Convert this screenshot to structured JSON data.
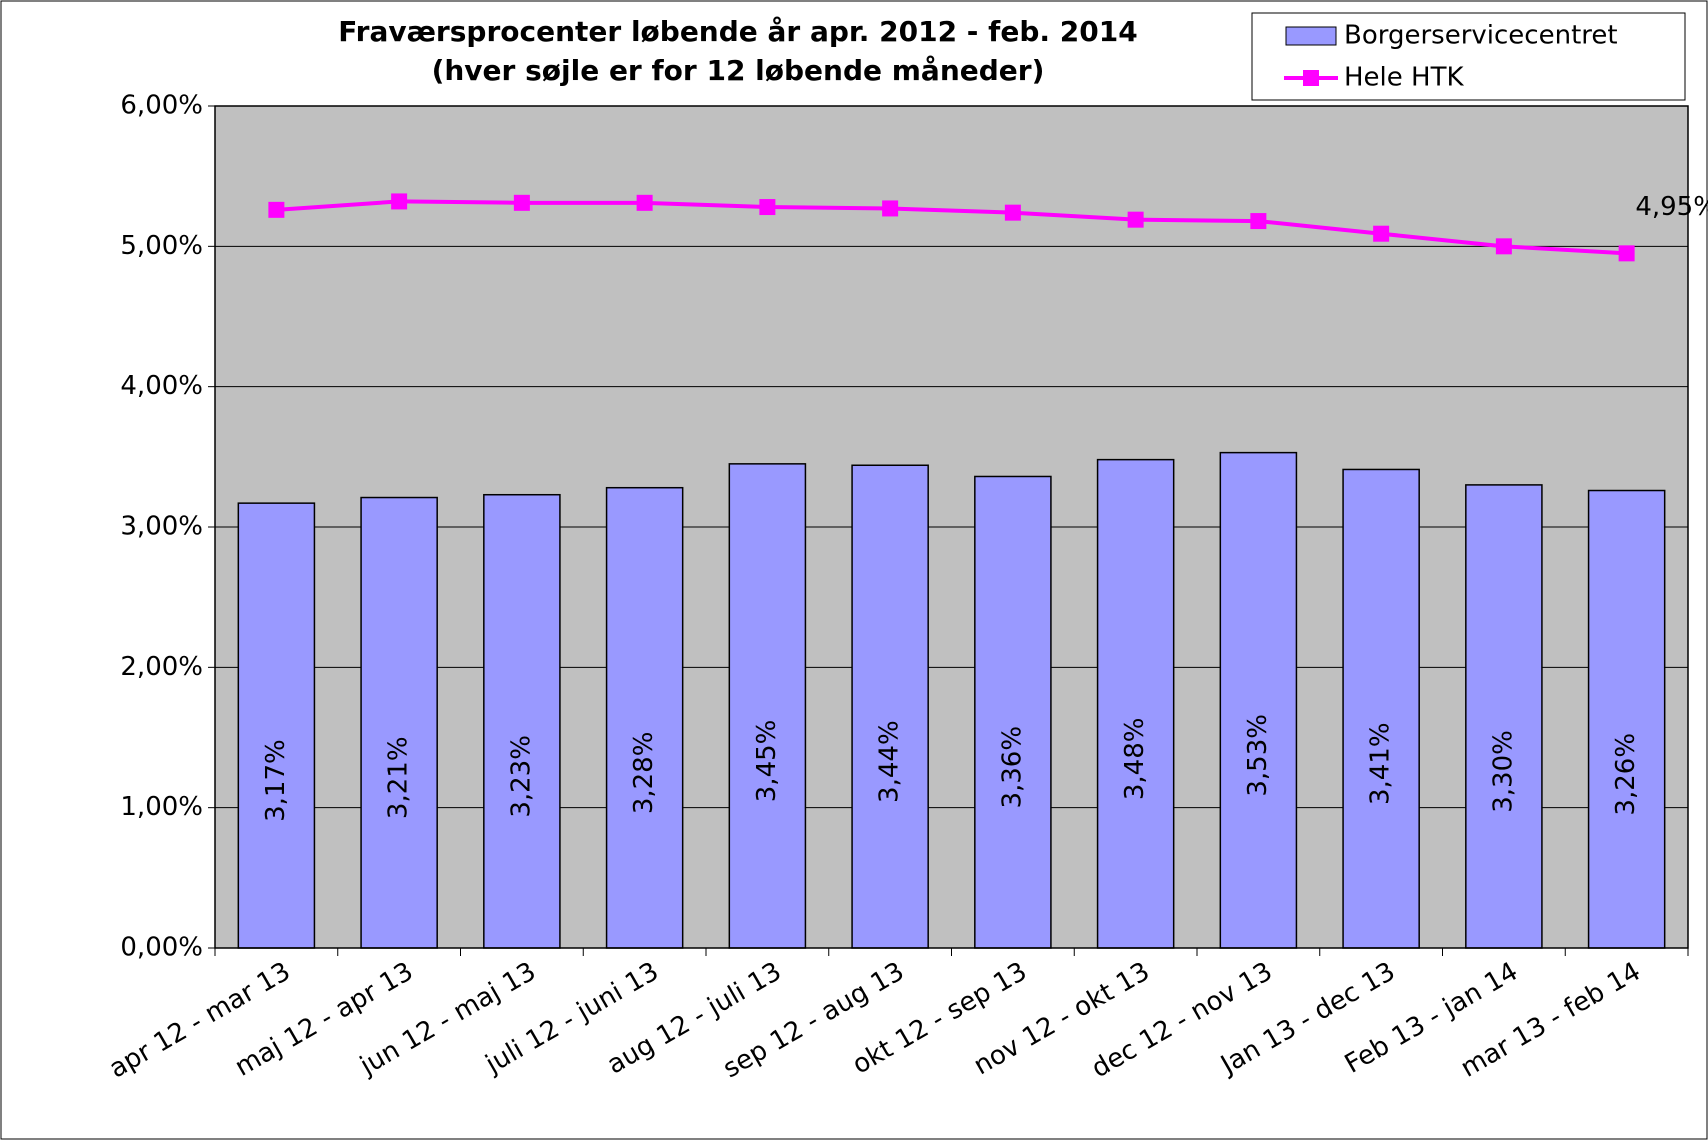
{
  "chart_data": {
    "type": "bar",
    "title": "Fraværsprocenter løbende år apr. 2012 - feb. 2014",
    "subtitle": "(hver søjle er for 12 løbende måneder)",
    "categories": [
      "apr 12 - mar 13",
      "maj 12 - apr 13",
      "jun 12 - maj 13",
      "juli 12 - juni 13",
      "aug 12 - juli 13",
      "sep 12 - aug 13",
      "okt 12 - sep 13",
      "nov 12 - okt 13",
      "dec 12 - nov 13",
      "Jan 13 - dec 13",
      "Feb 13 - jan 14",
      "mar 13 - feb 14"
    ],
    "series": [
      {
        "name": "Borgerservicecentret",
        "type": "bar",
        "color": "#9999ff",
        "values": [
          3.17,
          3.21,
          3.23,
          3.28,
          3.45,
          3.44,
          3.36,
          3.48,
          3.53,
          3.41,
          3.3,
          3.26
        ],
        "value_labels": [
          "3,17%",
          "3,21%",
          "3,23%",
          "3,28%",
          "3,45%",
          "3,44%",
          "3,36%",
          "3,48%",
          "3,53%",
          "3,41%",
          "3,30%",
          "3,26%"
        ]
      },
      {
        "name": "Hele HTK",
        "type": "line",
        "color": "#ff00ff",
        "values": [
          5.26,
          5.32,
          5.31,
          5.31,
          5.28,
          5.27,
          5.24,
          5.19,
          5.18,
          5.09,
          5.0,
          4.95
        ],
        "value_labels": [
          null,
          null,
          null,
          null,
          null,
          null,
          null,
          null,
          null,
          null,
          null,
          "4,95%"
        ]
      }
    ],
    "ylim": [
      0,
      6
    ],
    "yticks": [
      {
        "value": 0,
        "label": "0,00%"
      },
      {
        "value": 1,
        "label": "1,00%"
      },
      {
        "value": 2,
        "label": "2,00%"
      },
      {
        "value": 3,
        "label": "3,00%"
      },
      {
        "value": 4,
        "label": "4,00%"
      },
      {
        "value": 5,
        "label": "5,00%"
      },
      {
        "value": 6,
        "label": "6,00%"
      }
    ],
    "grid": true,
    "legend": "top-right",
    "plot_background": "#c0c0c0"
  }
}
